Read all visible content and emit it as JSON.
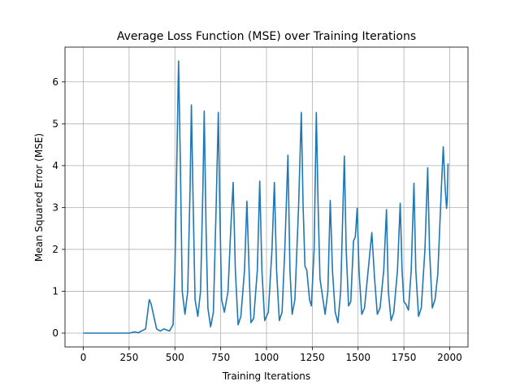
{
  "chart_data": {
    "type": "line",
    "title": "Average Loss Function (MSE) over Training Iterations",
    "x_label": "Training Iterations",
    "y_label": "Mean Squared Error (MSE)",
    "x": [
      0,
      250,
      280,
      300,
      340,
      360,
      370,
      400,
      420,
      440,
      470,
      490,
      500,
      510,
      520,
      530,
      540,
      555,
      570,
      583,
      590,
      600,
      610,
      625,
      640,
      653,
      660,
      670,
      680,
      695,
      710,
      725,
      737,
      745,
      755,
      770,
      790,
      805,
      818,
      830,
      845,
      860,
      880,
      893,
      905,
      915,
      930,
      950,
      963,
      975,
      990,
      1010,
      1030,
      1043,
      1055,
      1070,
      1085,
      1100,
      1117,
      1128,
      1140,
      1155,
      1175,
      1190,
      1200,
      1210,
      1220,
      1235,
      1245,
      1260,
      1272,
      1282,
      1292,
      1305,
      1320,
      1335,
      1348,
      1360,
      1375,
      1390,
      1405,
      1425,
      1435,
      1448,
      1460,
      1475,
      1485,
      1495,
      1505,
      1520,
      1535,
      1555,
      1575,
      1590,
      1605,
      1620,
      1640,
      1655,
      1665,
      1680,
      1695,
      1715,
      1730,
      1740,
      1750,
      1760,
      1775,
      1790,
      1805,
      1815,
      1830,
      1845,
      1865,
      1880,
      1890,
      1905,
      1920,
      1935,
      1955,
      1965,
      1975,
      1983,
      1987,
      1991
    ],
    "series": [
      {
        "color": "#1f77b4",
        "values": [
          0,
          0,
          0.03,
          0.01,
          0.1,
          0.8,
          0.7,
          0.1,
          0.05,
          0.1,
          0.05,
          0.2,
          1.5,
          4,
          6.5,
          4,
          1,
          0.45,
          1,
          3.5,
          5.45,
          3,
          0.8,
          0.4,
          1,
          3.5,
          5.3,
          2.5,
          0.6,
          0.15,
          0.5,
          3,
          5.27,
          3,
          0.8,
          0.5,
          1,
          2.5,
          3.6,
          1.5,
          0.2,
          0.4,
          1.5,
          3.15,
          1.5,
          0.25,
          0.35,
          1.5,
          3.63,
          1.5,
          0.3,
          0.5,
          2,
          3.6,
          1.5,
          0.3,
          0.5,
          2,
          4.25,
          1.5,
          0.45,
          0.8,
          3,
          5.27,
          3,
          1.6,
          1.5,
          0.8,
          0.65,
          2,
          5.27,
          3,
          1.3,
          0.9,
          0.45,
          1,
          3.17,
          1.5,
          0.5,
          0.25,
          1,
          4.23,
          2,
          0.65,
          0.75,
          2.2,
          2.3,
          2.98,
          1.5,
          0.45,
          0.6,
          1.5,
          2.4,
          1.3,
          0.45,
          0.6,
          1.5,
          2.95,
          1,
          0.3,
          0.5,
          1.5,
          3.1,
          1.5,
          0.75,
          0.7,
          0.55,
          1.5,
          3.58,
          1.5,
          0.4,
          0.6,
          2,
          3.95,
          2,
          0.6,
          0.8,
          1.4,
          3.5,
          4.45,
          3.5,
          2.98,
          3.2,
          4.05
        ]
      }
    ],
    "xlim": [
      -100,
      2100
    ],
    "ylim": [
      -0.33,
      6.83
    ],
    "xticks": [
      0,
      250,
      500,
      750,
      1000,
      1250,
      1500,
      1750,
      2000
    ],
    "yticks": [
      0,
      1,
      2,
      3,
      4,
      5,
      6
    ],
    "grid": true
  }
}
